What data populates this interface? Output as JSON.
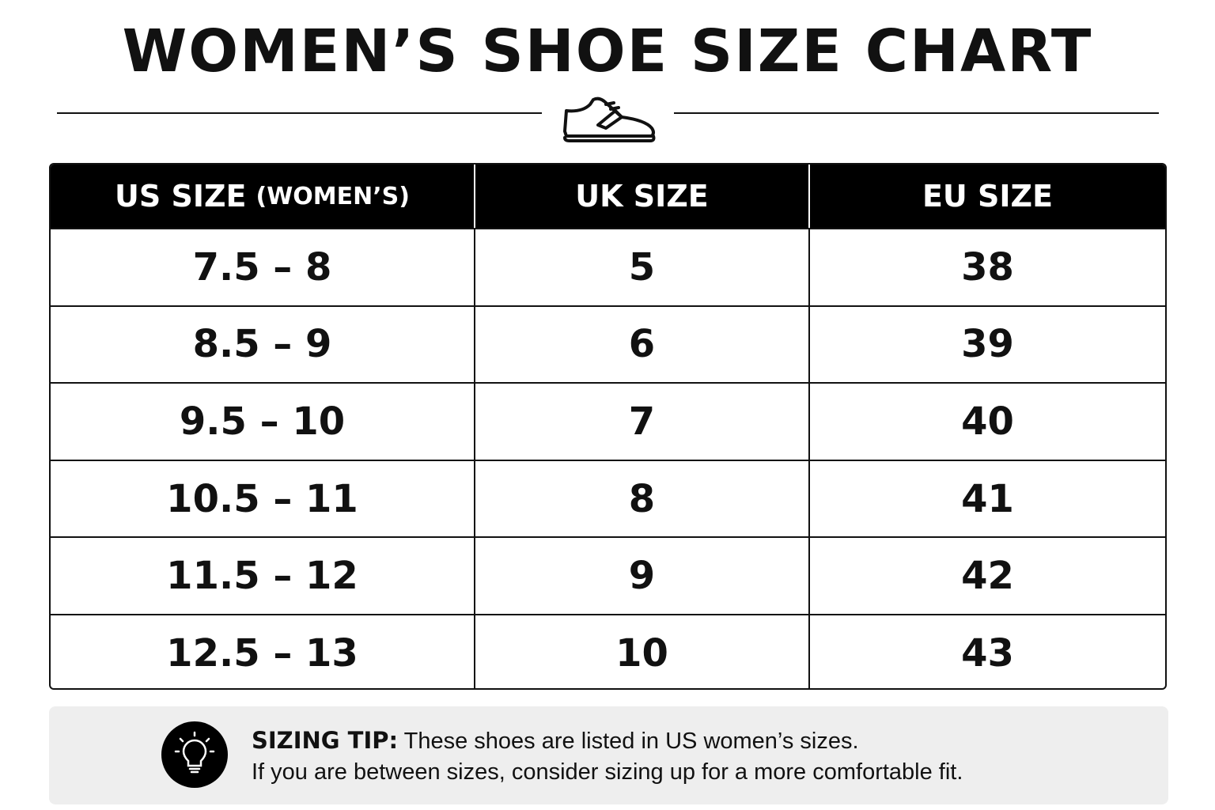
{
  "header": {
    "title": "WOMEN’S SHOE SIZE CHART"
  },
  "table": {
    "headers": [
      {
        "main": "US SIZE",
        "note": "(WOMEN’S)"
      },
      "UK SIZE",
      "EU SIZE"
    ],
    "rows": [
      [
        "7.5 – 8",
        "5",
        "38"
      ],
      [
        "8.5 – 9",
        "6",
        "39"
      ],
      [
        "9.5 – 10",
        "7",
        "40"
      ],
      [
        "10.5 – 11",
        "8",
        "41"
      ],
      [
        "11.5 – 12",
        "9",
        "42"
      ],
      [
        "12.5 – 13",
        "10",
        "43"
      ]
    ]
  },
  "tip": {
    "label": "SIZING TIP:",
    "lines": [
      "These shoes are listed in US women’s sizes.",
      "If you are between sizes, consider sizing up for a more comfortable fit."
    ]
  }
}
